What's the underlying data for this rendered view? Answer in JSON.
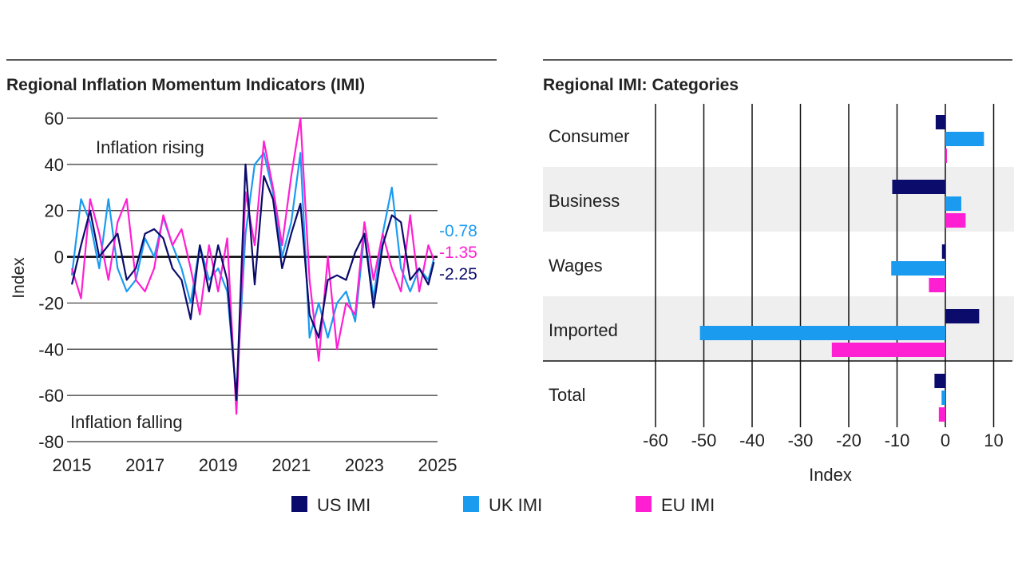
{
  "colors": {
    "us": "#0b0b6b",
    "uk": "#1a9bf0",
    "eu": "#ff1fd2",
    "band": "#efefef"
  },
  "legend": [
    {
      "key": "us",
      "label": "US IMI"
    },
    {
      "key": "uk",
      "label": "UK IMI"
    },
    {
      "key": "eu",
      "label": "EU IMI"
    }
  ],
  "chart_data": [
    {
      "type": "line",
      "title": "Regional Inflation Momentum Indicators (IMI)",
      "ylabel": "Index",
      "xlabel": "",
      "xlim": [
        2015,
        2025
      ],
      "ylim": [
        -80,
        60
      ],
      "xticks": [
        "2015",
        "2017",
        "2019",
        "2021",
        "2023",
        "2025"
      ],
      "yticks": [
        60,
        40,
        20,
        0,
        -20,
        -40,
        -60,
        -80
      ],
      "grid": "horizontal",
      "annotations": [
        "Inflation rising",
        "Inflation falling"
      ],
      "end_labels": {
        "uk": "-0.78",
        "eu": "-1.35",
        "us": "-2.25"
      },
      "x": [
        2015.0,
        2015.25,
        2015.5,
        2015.75,
        2016.0,
        2016.25,
        2016.5,
        2016.75,
        2017.0,
        2017.25,
        2017.5,
        2017.75,
        2018.0,
        2018.25,
        2018.5,
        2018.75,
        2019.0,
        2019.25,
        2019.5,
        2019.75,
        2020.0,
        2020.25,
        2020.5,
        2020.75,
        2021.0,
        2021.25,
        2021.5,
        2021.75,
        2022.0,
        2022.25,
        2022.5,
        2022.75,
        2023.0,
        2023.25,
        2023.5,
        2023.75,
        2024.0,
        2024.25,
        2024.5,
        2024.75,
        2024.9
      ],
      "series": [
        {
          "key": "us",
          "name": "US IMI",
          "values": [
            -12,
            5,
            20,
            0,
            5,
            10,
            -10,
            -5,
            10,
            12,
            8,
            -5,
            -10,
            -27,
            5,
            -15,
            5,
            -10,
            -62,
            40,
            -12,
            35,
            25,
            -5,
            10,
            23,
            -25,
            -35,
            -10,
            -8,
            -10,
            2,
            10,
            -22,
            5,
            18,
            15,
            -10,
            -5,
            -12,
            -2.25
          ]
        },
        {
          "key": "uk",
          "name": "UK IMI",
          "values": [
            -8,
            25,
            15,
            -5,
            25,
            -5,
            -15,
            -10,
            8,
            0,
            17,
            5,
            -5,
            -20,
            5,
            -10,
            -5,
            -15,
            -60,
            10,
            40,
            45,
            28,
            0,
            15,
            45,
            -35,
            -20,
            -35,
            -20,
            -15,
            -28,
            10,
            -18,
            10,
            30,
            -5,
            -15,
            -5,
            -10,
            -0.78
          ]
        },
        {
          "key": "eu",
          "name": "EU IMI",
          "values": [
            -5,
            -18,
            25,
            10,
            -10,
            15,
            25,
            -10,
            -15,
            -5,
            18,
            5,
            12,
            -5,
            -25,
            5,
            -15,
            8,
            -68,
            28,
            5,
            50,
            30,
            5,
            35,
            60,
            -10,
            -45,
            0,
            -40,
            -20,
            -25,
            15,
            -10,
            10,
            -5,
            -15,
            18,
            -15,
            5,
            -1.35
          ]
        }
      ]
    },
    {
      "type": "bar",
      "orientation": "horizontal",
      "title": "Regional IMI: Categories",
      "xlabel": "Index",
      "xlim": [
        -60,
        14
      ],
      "xticks": [
        -60,
        -50,
        -40,
        -30,
        -20,
        -10,
        0,
        10
      ],
      "grid": "vertical",
      "categories": [
        "Consumer",
        "Business",
        "Wages",
        "Imported",
        "Total"
      ],
      "series": [
        {
          "key": "us",
          "name": "US IMI",
          "values": [
            -2,
            -11,
            -0.7,
            7,
            -2.25
          ]
        },
        {
          "key": "uk",
          "name": "UK IMI",
          "values": [
            8,
            3.3,
            -11.2,
            -50.8,
            -0.78
          ]
        },
        {
          "key": "eu",
          "name": "EU IMI",
          "values": [
            0.3,
            4.2,
            -3.4,
            -23.5,
            -1.35
          ]
        }
      ]
    }
  ]
}
